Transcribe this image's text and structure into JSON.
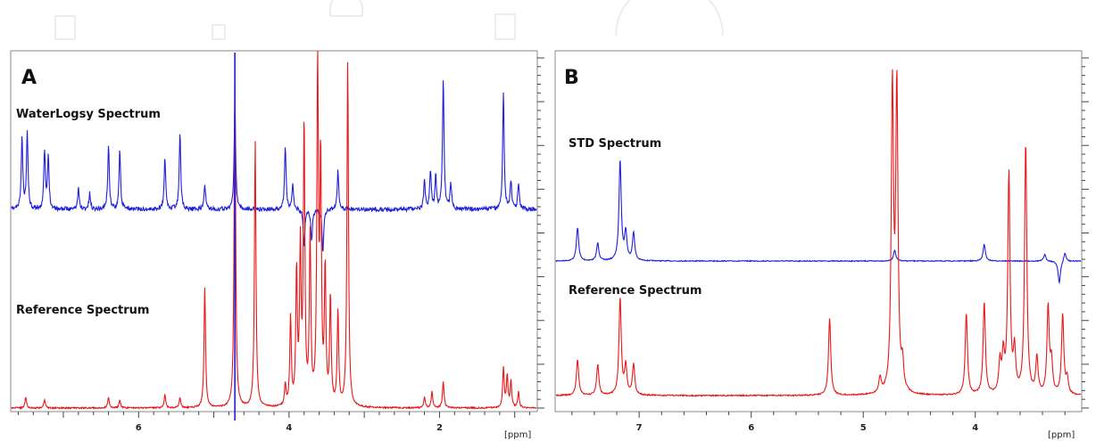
{
  "chart_data": [
    {
      "type": "line",
      "panel": "A",
      "xlabel": "[ppm]",
      "x_reversed": true,
      "xlim": [
        7.7,
        0.7
      ],
      "xticks": [
        6,
        4,
        2
      ],
      "grid": false,
      "colors": {
        "upper": "#2020d8",
        "lower": "#e81818",
        "marker": "#2020d8"
      },
      "upper_label": "WaterLogsy Spectrum",
      "lower_label": "Reference Spectrum",
      "series": [
        {
          "label_key": "upper_label",
          "color": "#2020d8",
          "baseline": 0,
          "peaks": [
            {
              "x": 7.55,
              "y": 0.55
            },
            {
              "x": 7.48,
              "y": 0.6
            },
            {
              "x": 7.25,
              "y": 0.45
            },
            {
              "x": 7.2,
              "y": 0.4
            },
            {
              "x": 6.8,
              "y": 0.16
            },
            {
              "x": 6.65,
              "y": 0.12
            },
            {
              "x": 6.4,
              "y": 0.5
            },
            {
              "x": 6.25,
              "y": 0.46
            },
            {
              "x": 5.65,
              "y": 0.4
            },
            {
              "x": 5.45,
              "y": 0.6
            },
            {
              "x": 5.12,
              "y": 0.2
            },
            {
              "x": 4.72,
              "y": 0.8
            },
            {
              "x": 4.05,
              "y": 0.5
            },
            {
              "x": 3.95,
              "y": 0.2
            },
            {
              "x": 3.8,
              "y": -0.3
            },
            {
              "x": 3.7,
              "y": -0.25
            },
            {
              "x": 3.55,
              "y": -0.35
            },
            {
              "x": 3.35,
              "y": 0.3
            },
            {
              "x": 2.2,
              "y": 0.22
            },
            {
              "x": 2.12,
              "y": 0.3
            },
            {
              "x": 2.05,
              "y": 0.25
            },
            {
              "x": 1.95,
              "y": 1.0
            },
            {
              "x": 1.85,
              "y": 0.2
            },
            {
              "x": 1.15,
              "y": 0.9
            },
            {
              "x": 1.05,
              "y": 0.22
            },
            {
              "x": 0.95,
              "y": 0.2
            }
          ]
        },
        {
          "label_key": "lower_label",
          "color": "#e81818",
          "baseline": 0,
          "peaks": [
            {
              "x": 7.5,
              "y": 0.04
            },
            {
              "x": 7.25,
              "y": 0.03
            },
            {
              "x": 6.4,
              "y": 0.04
            },
            {
              "x": 6.25,
              "y": 0.03
            },
            {
              "x": 5.65,
              "y": 0.05
            },
            {
              "x": 5.45,
              "y": 0.04
            },
            {
              "x": 5.12,
              "y": 0.45
            },
            {
              "x": 4.72,
              "y": 1.25
            },
            {
              "x": 4.45,
              "y": 1.0
            },
            {
              "x": 4.05,
              "y": 0.08
            },
            {
              "x": 3.98,
              "y": 0.33
            },
            {
              "x": 3.9,
              "y": 0.5
            },
            {
              "x": 3.85,
              "y": 0.58
            },
            {
              "x": 3.8,
              "y": 1.05
            },
            {
              "x": 3.72,
              "y": 0.62
            },
            {
              "x": 3.62,
              "y": 1.3
            },
            {
              "x": 3.58,
              "y": 0.9
            },
            {
              "x": 3.52,
              "y": 0.5
            },
            {
              "x": 3.45,
              "y": 0.4
            },
            {
              "x": 3.35,
              "y": 0.35
            },
            {
              "x": 3.22,
              "y": 1.3
            },
            {
              "x": 2.2,
              "y": 0.04
            },
            {
              "x": 2.1,
              "y": 0.06
            },
            {
              "x": 1.95,
              "y": 0.1
            },
            {
              "x": 1.15,
              "y": 0.15
            },
            {
              "x": 1.1,
              "y": 0.12
            },
            {
              "x": 1.05,
              "y": 0.1
            },
            {
              "x": 0.95,
              "y": 0.06
            }
          ]
        }
      ]
    },
    {
      "type": "line",
      "panel": "B",
      "xlabel": "[ppm]",
      "x_reversed": true,
      "xlim": [
        7.75,
        3.05
      ],
      "xticks": [
        7,
        6,
        5,
        4
      ],
      "grid": false,
      "colors": {
        "upper": "#2020d8",
        "lower": "#e81818"
      },
      "upper_label": "STD Spectrum",
      "lower_label": "Reference Spectrum",
      "series": [
        {
          "label_key": "upper_label",
          "color": "#2020d8",
          "baseline": 0,
          "peaks": [
            {
              "x": 7.55,
              "y": 0.3
            },
            {
              "x": 7.37,
              "y": 0.16
            },
            {
              "x": 7.17,
              "y": 0.9
            },
            {
              "x": 7.12,
              "y": 0.25
            },
            {
              "x": 7.05,
              "y": 0.25
            },
            {
              "x": 4.72,
              "y": 0.1
            },
            {
              "x": 3.92,
              "y": 0.15
            },
            {
              "x": 3.38,
              "y": 0.06
            },
            {
              "x": 3.25,
              "y": -0.2
            },
            {
              "x": 3.2,
              "y": 0.08
            }
          ]
        },
        {
          "label_key": "lower_label",
          "color": "#e81818",
          "baseline": 0,
          "peaks": [
            {
              "x": 7.55,
              "y": 0.35
            },
            {
              "x": 7.37,
              "y": 0.3
            },
            {
              "x": 7.17,
              "y": 0.95
            },
            {
              "x": 7.12,
              "y": 0.28
            },
            {
              "x": 7.05,
              "y": 0.3
            },
            {
              "x": 5.3,
              "y": 0.75
            },
            {
              "x": 4.85,
              "y": 0.15
            },
            {
              "x": 4.74,
              "y": 2.95
            },
            {
              "x": 4.7,
              "y": 2.95
            },
            {
              "x": 4.65,
              "y": 0.25
            },
            {
              "x": 4.08,
              "y": 0.8
            },
            {
              "x": 3.92,
              "y": 0.9
            },
            {
              "x": 3.78,
              "y": 0.3
            },
            {
              "x": 3.75,
              "y": 0.35
            },
            {
              "x": 3.7,
              "y": 2.15
            },
            {
              "x": 3.65,
              "y": 0.4
            },
            {
              "x": 3.55,
              "y": 2.45
            },
            {
              "x": 3.45,
              "y": 0.35
            },
            {
              "x": 3.35,
              "y": 0.85
            },
            {
              "x": 3.32,
              "y": 0.3
            },
            {
              "x": 3.22,
              "y": 0.78
            },
            {
              "x": 3.18,
              "y": 0.15
            }
          ]
        }
      ]
    }
  ],
  "panel_a": {
    "letter": "A",
    "upper_label": "WaterLogsy Spectrum",
    "lower_label": "Reference Spectrum",
    "unit": "[ppm]",
    "ticks": [
      "6",
      "4",
      "2"
    ]
  },
  "panel_b": {
    "letter": "B",
    "upper_label": "STD Spectrum",
    "lower_label": "Reference Spectrum",
    "unit": "[ppm]",
    "ticks": [
      "7",
      "6",
      "5",
      "4"
    ]
  }
}
